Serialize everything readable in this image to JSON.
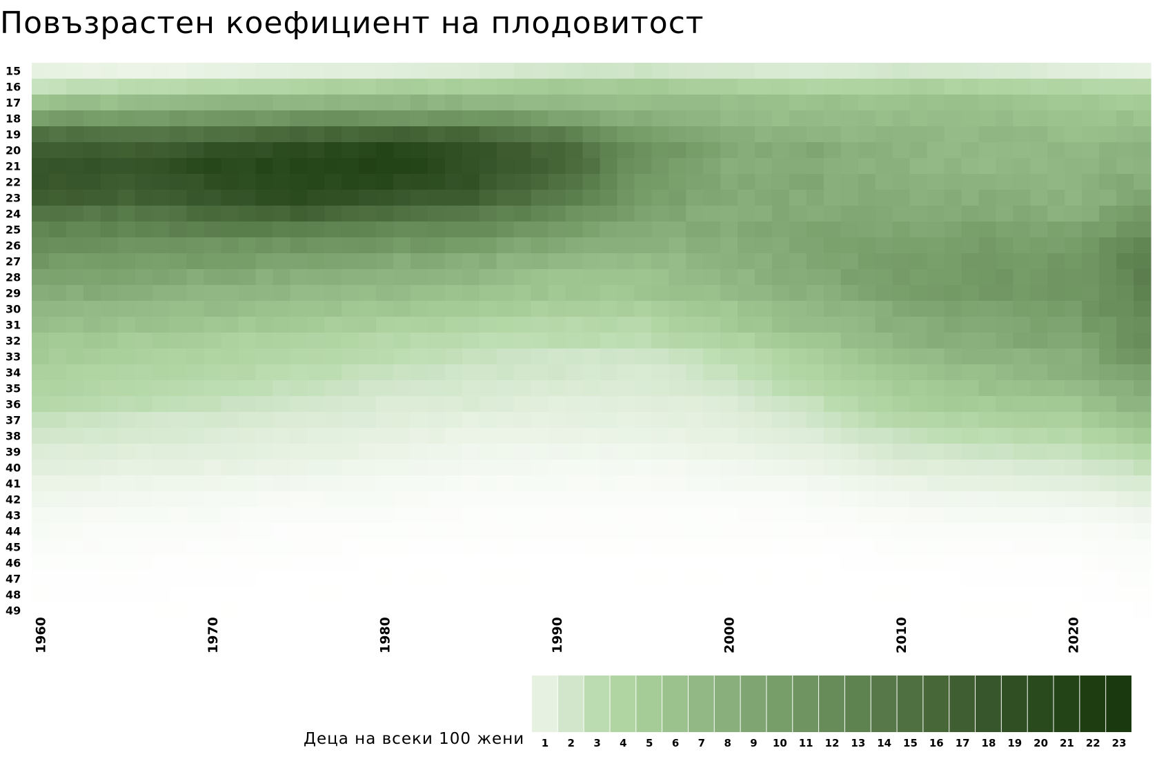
{
  "title": "Повъзрастен коефициент на плодовитост",
  "legend_title": "Деца на всеки 100 жени",
  "colors": {
    "scale": [
      "#e6f1e1",
      "#d1e6cb",
      "#bbdcb0",
      "#b0d4a2",
      "#a5cb97",
      "#9bc28c",
      "#92b886",
      "#88af7c",
      "#7fa672",
      "#779d69",
      "#6f9461",
      "#678b59",
      "#5f8251",
      "#577949",
      "#4f7041",
      "#476739",
      "#3f5e31",
      "#38562b",
      "#305024",
      "#294a1d",
      "#234417",
      "#1e3e12",
      "#1a390e"
    ],
    "low": "#ffffff"
  },
  "chart_data": {
    "type": "heatmap",
    "title": "Повъзрастен коефициент на плодовитост",
    "x_range": [
      1960,
      2024
    ],
    "x_ticks": [
      1960,
      1970,
      1980,
      1990,
      2000,
      2010,
      2020
    ],
    "ages": [
      15,
      16,
      17,
      18,
      19,
      20,
      21,
      22,
      23,
      24,
      25,
      26,
      27,
      28,
      29,
      30,
      31,
      32,
      33,
      34,
      35,
      36,
      37,
      38,
      39,
      40,
      41,
      42,
      43,
      44,
      45,
      46,
      47,
      48,
      49
    ],
    "legend_values": [
      1,
      2,
      3,
      4,
      5,
      6,
      7,
      8,
      9,
      10,
      11,
      12,
      13,
      14,
      15,
      16,
      17,
      18,
      19,
      20,
      21,
      22,
      23
    ],
    "value_unit": "Деца на всеки 100 жени",
    "anchor_years": [
      1960,
      1965,
      1970,
      1975,
      1980,
      1985,
      1990,
      1995,
      2000,
      2005,
      2010,
      2015,
      2020,
      2024
    ],
    "values_by_age": {
      "15": [
        1.0,
        0.8,
        0.9,
        1.2,
        1.3,
        1.5,
        2.0,
        2.2,
        1.8,
        1.5,
        2.0,
        1.8,
        1.3,
        1.0
      ],
      "16": [
        2.5,
        3.0,
        3.5,
        4.0,
        4.5,
        4.5,
        5.0,
        5.0,
        4.5,
        4.0,
        4.5,
        4.0,
        3.8,
        3.5
      ],
      "17": [
        6.0,
        6.5,
        7.0,
        7.5,
        7.5,
        7.5,
        7.0,
        6.5,
        6.5,
        6.0,
        6.0,
        6.0,
        5.5,
        5.0
      ],
      "18": [
        10.0,
        10.0,
        10.5,
        11.0,
        11.0,
        11.0,
        9.5,
        8.0,
        6.8,
        6.5,
        6.5,
        6.5,
        6.0,
        6.0
      ],
      "19": [
        15.0,
        14.5,
        15.0,
        16.0,
        16.5,
        16.0,
        13.5,
        10.0,
        8.0,
        7.5,
        7.0,
        7.0,
        6.5,
        7.0
      ],
      "20": [
        17.5,
        17.0,
        18.5,
        19.5,
        20.5,
        18.5,
        16.0,
        11.5,
        8.5,
        8.5,
        7.5,
        7.0,
        7.0,
        8.0
      ],
      "21": [
        18.5,
        18.0,
        20.0,
        20.5,
        21.5,
        19.0,
        16.5,
        11.0,
        8.5,
        8.5,
        7.5,
        7.0,
        7.0,
        8.0
      ],
      "22": [
        18.0,
        17.5,
        19.0,
        20.5,
        20.0,
        18.5,
        15.0,
        10.5,
        8.5,
        8.5,
        8.0,
        7.5,
        7.5,
        8.5
      ],
      "23": [
        17.0,
        16.5,
        18.0,
        19.5,
        18.0,
        17.0,
        14.0,
        10.0,
        8.5,
        8.5,
        8.0,
        8.0,
        7.5,
        9.0
      ],
      "24": [
        14.5,
        14.0,
        15.5,
        16.5,
        15.0,
        14.0,
        12.0,
        9.0,
        8.0,
        8.5,
        8.5,
        8.5,
        8.0,
        10.0
      ],
      "25": [
        13.0,
        12.5,
        13.0,
        13.5,
        12.5,
        12.0,
        10.0,
        8.5,
        8.5,
        9.0,
        9.0,
        9.5,
        9.0,
        11.5
      ],
      "26": [
        11.5,
        11.0,
        11.0,
        11.0,
        10.5,
        10.0,
        8.5,
        7.5,
        8.0,
        9.0,
        9.5,
        10.0,
        10.0,
        13.0
      ],
      "27": [
        10.5,
        10.0,
        10.0,
        9.5,
        8.5,
        8.0,
        7.0,
        6.5,
        7.5,
        9.0,
        10.0,
        10.5,
        10.5,
        13.5
      ],
      "28": [
        9.5,
        9.0,
        8.5,
        8.0,
        7.5,
        7.0,
        6.0,
        6.0,
        7.0,
        8.5,
        10.0,
        10.5,
        10.5,
        13.0
      ],
      "29": [
        8.5,
        8.0,
        7.5,
        7.0,
        6.5,
        6.0,
        5.5,
        5.5,
        6.5,
        8.0,
        9.5,
        10.5,
        10.5,
        13.0
      ],
      "30": [
        7.5,
        7.0,
        6.5,
        6.0,
        5.5,
        5.0,
        4.5,
        4.5,
        5.5,
        7.0,
        8.5,
        9.5,
        10.0,
        12.5
      ],
      "31": [
        6.5,
        6.0,
        5.5,
        5.0,
        4.5,
        4.0,
        3.5,
        3.5,
        5.0,
        6.5,
        8.0,
        9.0,
        9.5,
        12.0
      ],
      "32": [
        5.5,
        5.0,
        4.5,
        4.0,
        3.5,
        3.0,
        3.0,
        3.0,
        4.0,
        5.5,
        7.5,
        8.5,
        9.0,
        11.5
      ],
      "33": [
        5.0,
        4.5,
        4.0,
        3.5,
        3.0,
        2.5,
        2.0,
        2.0,
        3.0,
        4.5,
        6.5,
        7.5,
        8.0,
        11.0
      ],
      "34": [
        4.5,
        4.0,
        3.5,
        3.0,
        2.5,
        2.0,
        2.0,
        1.5,
        2.5,
        4.0,
        5.5,
        6.5,
        7.5,
        9.5
      ],
      "35": [
        4.0,
        3.5,
        3.0,
        2.5,
        2.0,
        1.7,
        1.5,
        1.5,
        2.0,
        3.5,
        5.0,
        6.0,
        6.5,
        8.5
      ],
      "36": [
        3.5,
        3.0,
        2.5,
        2.0,
        1.5,
        1.5,
        1.2,
        1.2,
        1.5,
        2.5,
        4.5,
        5.0,
        5.5,
        7.5
      ],
      "37": [
        2.5,
        2.0,
        1.8,
        1.5,
        1.3,
        1.0,
        1.0,
        1.0,
        1.2,
        2.0,
        3.5,
        4.0,
        4.5,
        6.0
      ],
      "38": [
        2.0,
        1.7,
        1.5,
        1.2,
        1.0,
        0.8,
        0.8,
        0.8,
        1.0,
        1.5,
        2.5,
        3.0,
        3.5,
        5.0
      ],
      "39": [
        1.5,
        1.3,
        1.2,
        1.0,
        0.8,
        0.6,
        0.6,
        0.6,
        0.8,
        1.0,
        1.8,
        2.2,
        2.5,
        3.5
      ],
      "40": [
        1.2,
        1.0,
        0.9,
        0.8,
        0.6,
        0.5,
        0.4,
        0.4,
        0.5,
        0.8,
        1.3,
        1.5,
        1.8,
        2.5
      ],
      "41": [
        0.8,
        0.7,
        0.6,
        0.5,
        0.4,
        0.3,
        0.3,
        0.3,
        0.4,
        0.5,
        0.8,
        1.0,
        1.2,
        1.6
      ],
      "42": [
        0.6,
        0.5,
        0.4,
        0.3,
        0.3,
        0.2,
        0.2,
        0.2,
        0.2,
        0.3,
        0.5,
        0.6,
        0.7,
        1.0
      ],
      "43": [
        0.4,
        0.3,
        0.3,
        0.2,
        0.2,
        0.1,
        0.1,
        0.1,
        0.1,
        0.2,
        0.3,
        0.4,
        0.4,
        0.6
      ],
      "44": [
        0.3,
        0.2,
        0.2,
        0.1,
        0.1,
        0.1,
        0.1,
        0.1,
        0.1,
        0.1,
        0.2,
        0.2,
        0.2,
        0.4
      ],
      "45": [
        0.2,
        0.15,
        0.1,
        0.1,
        0.05,
        0.05,
        0.05,
        0.05,
        0.05,
        0.05,
        0.1,
        0.1,
        0.15,
        0.25
      ],
      "46": [
        0.1,
        0.1,
        0.05,
        0.05,
        0.03,
        0.03,
        0.03,
        0.03,
        0.03,
        0.03,
        0.05,
        0.05,
        0.08,
        0.15
      ],
      "47": [
        0.08,
        0.05,
        0.04,
        0.03,
        0.02,
        0.02,
        0.02,
        0.02,
        0.02,
        0.02,
        0.03,
        0.04,
        0.05,
        0.1
      ],
      "48": [
        0.05,
        0.04,
        0.03,
        0.02,
        0.01,
        0.01,
        0.01,
        0.01,
        0.01,
        0.01,
        0.02,
        0.03,
        0.03,
        0.06
      ],
      "49": [
        0.03,
        0.02,
        0.02,
        0.01,
        0.01,
        0.01,
        0.01,
        0.01,
        0.01,
        0.01,
        0.01,
        0.02,
        0.02,
        0.04
      ]
    }
  }
}
